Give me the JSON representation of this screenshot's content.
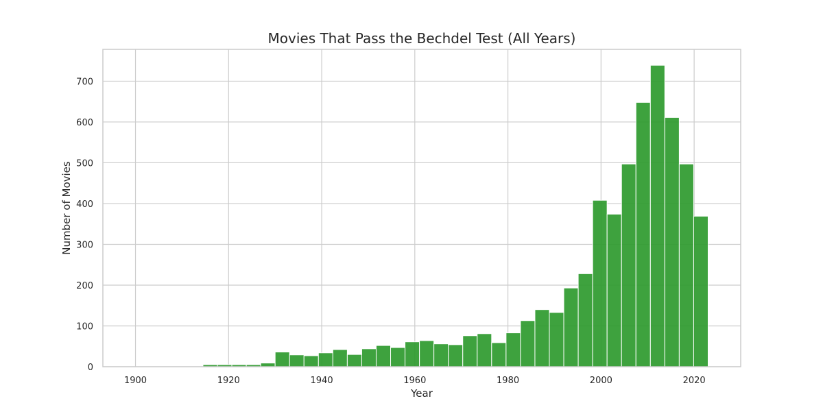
{
  "chart_data": {
    "type": "bar",
    "title": "Movies That Pass the Bechdel Test (All Years)",
    "xlabel": "Year",
    "ylabel": "Number of Movies",
    "xlim": [
      1893,
      2030
    ],
    "ylim": [
      0,
      778
    ],
    "xticks": [
      1900,
      1920,
      1940,
      1960,
      1980,
      2000,
      2020
    ],
    "yticks": [
      0,
      100,
      200,
      300,
      400,
      500,
      600,
      700
    ],
    "grid": true,
    "bar_color": "#2e9a2e",
    "bins": [
      {
        "start": 1899.0,
        "end": 1902.1,
        "value": 0
      },
      {
        "start": 1902.1,
        "end": 1905.2,
        "value": 0
      },
      {
        "start": 1905.2,
        "end": 1908.3,
        "value": 0
      },
      {
        "start": 1908.3,
        "end": 1911.4,
        "value": 0
      },
      {
        "start": 1911.4,
        "end": 1914.5,
        "value": 0
      },
      {
        "start": 1914.5,
        "end": 1917.6,
        "value": 5
      },
      {
        "start": 1917.6,
        "end": 1920.7,
        "value": 5
      },
      {
        "start": 1920.7,
        "end": 1923.8,
        "value": 5
      },
      {
        "start": 1923.8,
        "end": 1926.9,
        "value": 5
      },
      {
        "start": 1926.9,
        "end": 1930.0,
        "value": 9
      },
      {
        "start": 1930.0,
        "end": 1933.1,
        "value": 36
      },
      {
        "start": 1933.1,
        "end": 1936.2,
        "value": 29
      },
      {
        "start": 1936.2,
        "end": 1939.3,
        "value": 27
      },
      {
        "start": 1939.3,
        "end": 1942.4,
        "value": 34
      },
      {
        "start": 1942.4,
        "end": 1945.5,
        "value": 42
      },
      {
        "start": 1945.5,
        "end": 1948.6,
        "value": 30
      },
      {
        "start": 1948.6,
        "end": 1951.7,
        "value": 44
      },
      {
        "start": 1951.7,
        "end": 1954.8,
        "value": 52
      },
      {
        "start": 1954.8,
        "end": 1957.9,
        "value": 47
      },
      {
        "start": 1957.9,
        "end": 1961.0,
        "value": 61
      },
      {
        "start": 1961.0,
        "end": 1964.1,
        "value": 64
      },
      {
        "start": 1964.1,
        "end": 1967.2,
        "value": 56
      },
      {
        "start": 1967.2,
        "end": 1970.3,
        "value": 54
      },
      {
        "start": 1970.3,
        "end": 1973.4,
        "value": 76
      },
      {
        "start": 1973.4,
        "end": 1976.5,
        "value": 81
      },
      {
        "start": 1976.5,
        "end": 1979.6,
        "value": 59
      },
      {
        "start": 1979.6,
        "end": 1982.7,
        "value": 83
      },
      {
        "start": 1982.7,
        "end": 1985.8,
        "value": 113
      },
      {
        "start": 1985.8,
        "end": 1988.9,
        "value": 140
      },
      {
        "start": 1988.9,
        "end": 1992.0,
        "value": 133
      },
      {
        "start": 1992.0,
        "end": 1995.1,
        "value": 193
      },
      {
        "start": 1995.1,
        "end": 1998.2,
        "value": 228
      },
      {
        "start": 1998.2,
        "end": 2001.3,
        "value": 408
      },
      {
        "start": 2001.3,
        "end": 2004.4,
        "value": 374
      },
      {
        "start": 2004.4,
        "end": 2007.5,
        "value": 497
      },
      {
        "start": 2007.5,
        "end": 2010.6,
        "value": 648
      },
      {
        "start": 2010.6,
        "end": 2013.7,
        "value": 739
      },
      {
        "start": 2013.7,
        "end": 2016.8,
        "value": 611
      },
      {
        "start": 2016.8,
        "end": 2019.9,
        "value": 497
      },
      {
        "start": 2019.9,
        "end": 2023.0,
        "value": 369
      }
    ]
  }
}
